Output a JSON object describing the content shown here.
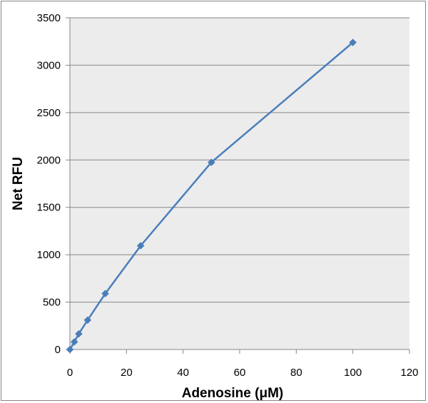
{
  "chart_data": {
    "type": "scatter",
    "title": "",
    "xlabel": "Adenosine (μM)",
    "ylabel": "Net RFU",
    "xlim": [
      0,
      120
    ],
    "ylim": [
      0,
      3500
    ],
    "x_ticks": [
      "0",
      "20",
      "40",
      "60",
      "80",
      "100",
      "120"
    ],
    "y_ticks": [
      "0",
      "500",
      "1000",
      "1500",
      "2000",
      "2500",
      "3000",
      "3500"
    ],
    "grid": "horizontal",
    "legend": "none",
    "plot_background": "#ececec",
    "line_color": "#4a7ebb",
    "marker": "diamond",
    "series": [
      {
        "x": [
          0,
          1.5625,
          3.125,
          6.25,
          12.5,
          25,
          50,
          100
        ],
        "y": [
          0,
          80,
          165,
          310,
          590,
          1095,
          1975,
          3240
        ]
      }
    ]
  }
}
